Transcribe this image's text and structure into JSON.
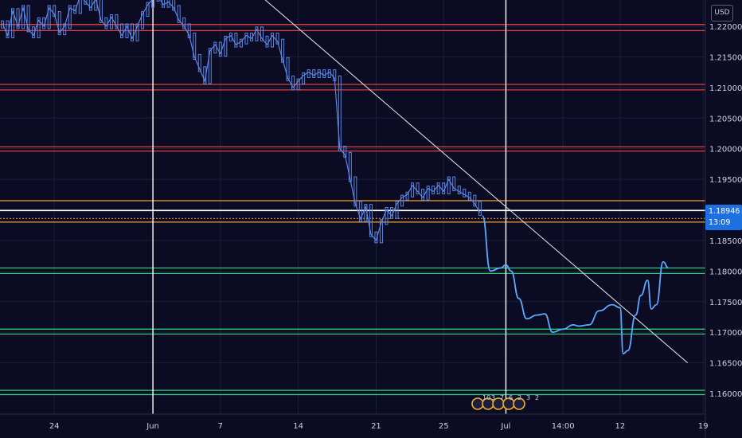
{
  "header": {
    "currency": "USD"
  },
  "price_badge": {
    "price": "1.18946",
    "countdown": "13:09"
  },
  "colors": {
    "background": "#0b0b24",
    "grid": "#1c1f38",
    "candles": "#5b86e5",
    "projection": "#5fa8ff",
    "resistance": "#e03c3c",
    "support": "#2ecc71",
    "orange_level": "#f0a030",
    "white_level": "#ffffff",
    "trendline": "#d9d9d9",
    "price_badge": "#1e6fe0"
  },
  "events_icons": [
    "us-flag-icon",
    "event-icon",
    "event-icon",
    "event-icon",
    "event-icon"
  ],
  "events_labels": [
    "10",
    "3",
    "7",
    "6",
    "2",
    "3",
    "2"
  ],
  "chart_data": {
    "type": "line",
    "title": "",
    "ylim": [
      1.1565,
      1.2255
    ],
    "xlim": [
      0,
      136
    ],
    "x_tick_labels": [
      {
        "x": 10,
        "label": "24"
      },
      {
        "x": 29,
        "label": "Jun"
      },
      {
        "x": 42,
        "label": "7"
      },
      {
        "x": 57,
        "label": "14"
      },
      {
        "x": 72,
        "label": "21"
      },
      {
        "x": 85,
        "label": "25"
      },
      {
        "x": 97,
        "label": "Jul"
      },
      {
        "x": 108,
        "label": "14:00"
      },
      {
        "x": 119,
        "label": "12"
      },
      {
        "x": 135,
        "label": "19"
      }
    ],
    "y_ticks": [
      "1.22000",
      "1.21500",
      "1.21000",
      "1.20500",
      "1.20000",
      "1.19500",
      "1.19000",
      "1.18500",
      "1.18000",
      "1.17500",
      "1.17000",
      "1.16500",
      "1.16000"
    ],
    "current_price": 1.18946,
    "horizontal_levels": [
      {
        "kind": "resistance",
        "values": [
          1.2203,
          1.2193
        ]
      },
      {
        "kind": "resistance",
        "values": [
          1.2105,
          1.2096
        ]
      },
      {
        "kind": "resistance",
        "values": [
          1.2003,
          1.1996
        ]
      },
      {
        "kind": "orange",
        "values": [
          1.1915
        ]
      },
      {
        "kind": "white",
        "values": [
          1.1899
        ]
      },
      {
        "kind": "orange-dotted",
        "values": [
          1.1886
        ]
      },
      {
        "kind": "orange",
        "values": [
          1.188
        ]
      },
      {
        "kind": "support",
        "values": [
          1.1805,
          1.1796
        ]
      },
      {
        "kind": "support",
        "values": [
          1.1705,
          1.1697
        ]
      },
      {
        "kind": "support",
        "values": [
          1.1605,
          1.1598
        ]
      }
    ],
    "vertical_lines": [
      29,
      97
    ],
    "trendline": {
      "from": {
        "x": 49,
        "y": 1.2255
      },
      "to": {
        "x": 132,
        "y": 1.165
      }
    },
    "series": [
      {
        "values": [
          [
            0,
            1.2205
          ],
          [
            1,
            1.2185
          ],
          [
            2,
            1.2225
          ],
          [
            3,
            1.22
          ],
          [
            4,
            1.223
          ],
          [
            5,
            1.2195
          ],
          [
            6,
            1.2185
          ],
          [
            7,
            1.221
          ],
          [
            8,
            1.22
          ],
          [
            9,
            1.223
          ],
          [
            10,
            1.222
          ],
          [
            11,
            1.219
          ],
          [
            12,
            1.22
          ],
          [
            13,
            1.223
          ],
          [
            14,
            1.2225
          ],
          [
            15,
            1.225
          ],
          [
            16,
            1.224
          ],
          [
            17,
            1.223
          ],
          [
            18,
            1.2245
          ],
          [
            19,
            1.221
          ],
          [
            20,
            1.22
          ],
          [
            21,
            1.2215
          ],
          [
            22,
            1.22
          ],
          [
            23,
            1.2185
          ],
          [
            24,
            1.22
          ],
          [
            25,
            1.218
          ],
          [
            26,
            1.22
          ],
          [
            27,
            1.222
          ],
          [
            28,
            1.2235
          ],
          [
            29,
            1.2245
          ],
          [
            30,
            1.225
          ],
          [
            31,
            1.2235
          ],
          [
            32,
            1.224
          ],
          [
            33,
            1.223
          ],
          [
            34,
            1.221
          ],
          [
            35,
            1.22
          ],
          [
            36,
            1.2185
          ],
          [
            37,
            1.215
          ],
          [
            38,
            1.213
          ],
          [
            39,
            1.211
          ],
          [
            40,
            1.216
          ],
          [
            41,
            1.217
          ],
          [
            42,
            1.2155
          ],
          [
            43,
            1.218
          ],
          [
            44,
            1.2185
          ],
          [
            45,
            1.217
          ],
          [
            46,
            1.2175
          ],
          [
            47,
            1.2185
          ],
          [
            48,
            1.218
          ],
          [
            49,
            1.2195
          ],
          [
            50,
            1.218
          ],
          [
            51,
            1.217
          ],
          [
            52,
            1.2185
          ],
          [
            53,
            1.2175
          ],
          [
            54,
            1.2145
          ],
          [
            55,
            1.2115
          ],
          [
            56,
            1.21
          ],
          [
            57,
            1.211
          ],
          [
            58,
            1.212
          ],
          [
            59,
            1.2125
          ],
          [
            60,
            1.212
          ],
          [
            61,
            1.2125
          ],
          [
            62,
            1.212
          ],
          [
            63,
            1.2125
          ],
          [
            64,
            1.2115
          ],
          [
            65,
            1.2
          ],
          [
            66,
            1.199
          ],
          [
            67,
            1.195
          ],
          [
            68,
            1.191
          ],
          [
            69,
            1.1885
          ],
          [
            70,
            1.1905
          ],
          [
            71,
            1.186
          ],
          [
            72,
            1.185
          ],
          [
            73,
            1.188
          ],
          [
            74,
            1.19
          ],
          [
            75,
            1.189
          ],
          [
            76,
            1.191
          ],
          [
            77,
            1.192
          ],
          [
            78,
            1.1925
          ],
          [
            79,
            1.194
          ],
          [
            80,
            1.193
          ],
          [
            81,
            1.192
          ],
          [
            82,
            1.1935
          ],
          [
            83,
            1.193
          ],
          [
            84,
            1.194
          ],
          [
            85,
            1.193
          ],
          [
            86,
            1.195
          ],
          [
            87,
            1.1935
          ],
          [
            88,
            1.193
          ],
          [
            89,
            1.1925
          ],
          [
            90,
            1.192
          ],
          [
            91,
            1.191
          ],
          [
            92,
            1.1895
          ]
        ]
      },
      {
        "values": [
          [
            92.5,
            1.189
          ],
          [
            94,
            1.18
          ],
          [
            96,
            1.1805
          ],
          [
            97,
            1.181
          ],
          [
            98,
            1.18
          ],
          [
            99.5,
            1.1755
          ],
          [
            101,
            1.1722
          ],
          [
            103,
            1.1728
          ],
          [
            104.5,
            1.173
          ],
          [
            106,
            1.17
          ],
          [
            108,
            1.1705
          ],
          [
            110,
            1.1712
          ],
          [
            111,
            1.171
          ],
          [
            113,
            1.1712
          ],
          [
            115,
            1.1735
          ],
          [
            117.5,
            1.1745
          ],
          [
            119,
            1.174
          ],
          [
            119.6,
            1.1665
          ],
          [
            120.5,
            1.167
          ],
          [
            122,
            1.1728
          ],
          [
            123,
            1.176
          ],
          [
            124.3,
            1.1785
          ],
          [
            125,
            1.1738
          ],
          [
            126,
            1.1745
          ],
          [
            127.3,
            1.1815
          ],
          [
            128.3,
            1.1805
          ]
        ]
      }
    ]
  }
}
